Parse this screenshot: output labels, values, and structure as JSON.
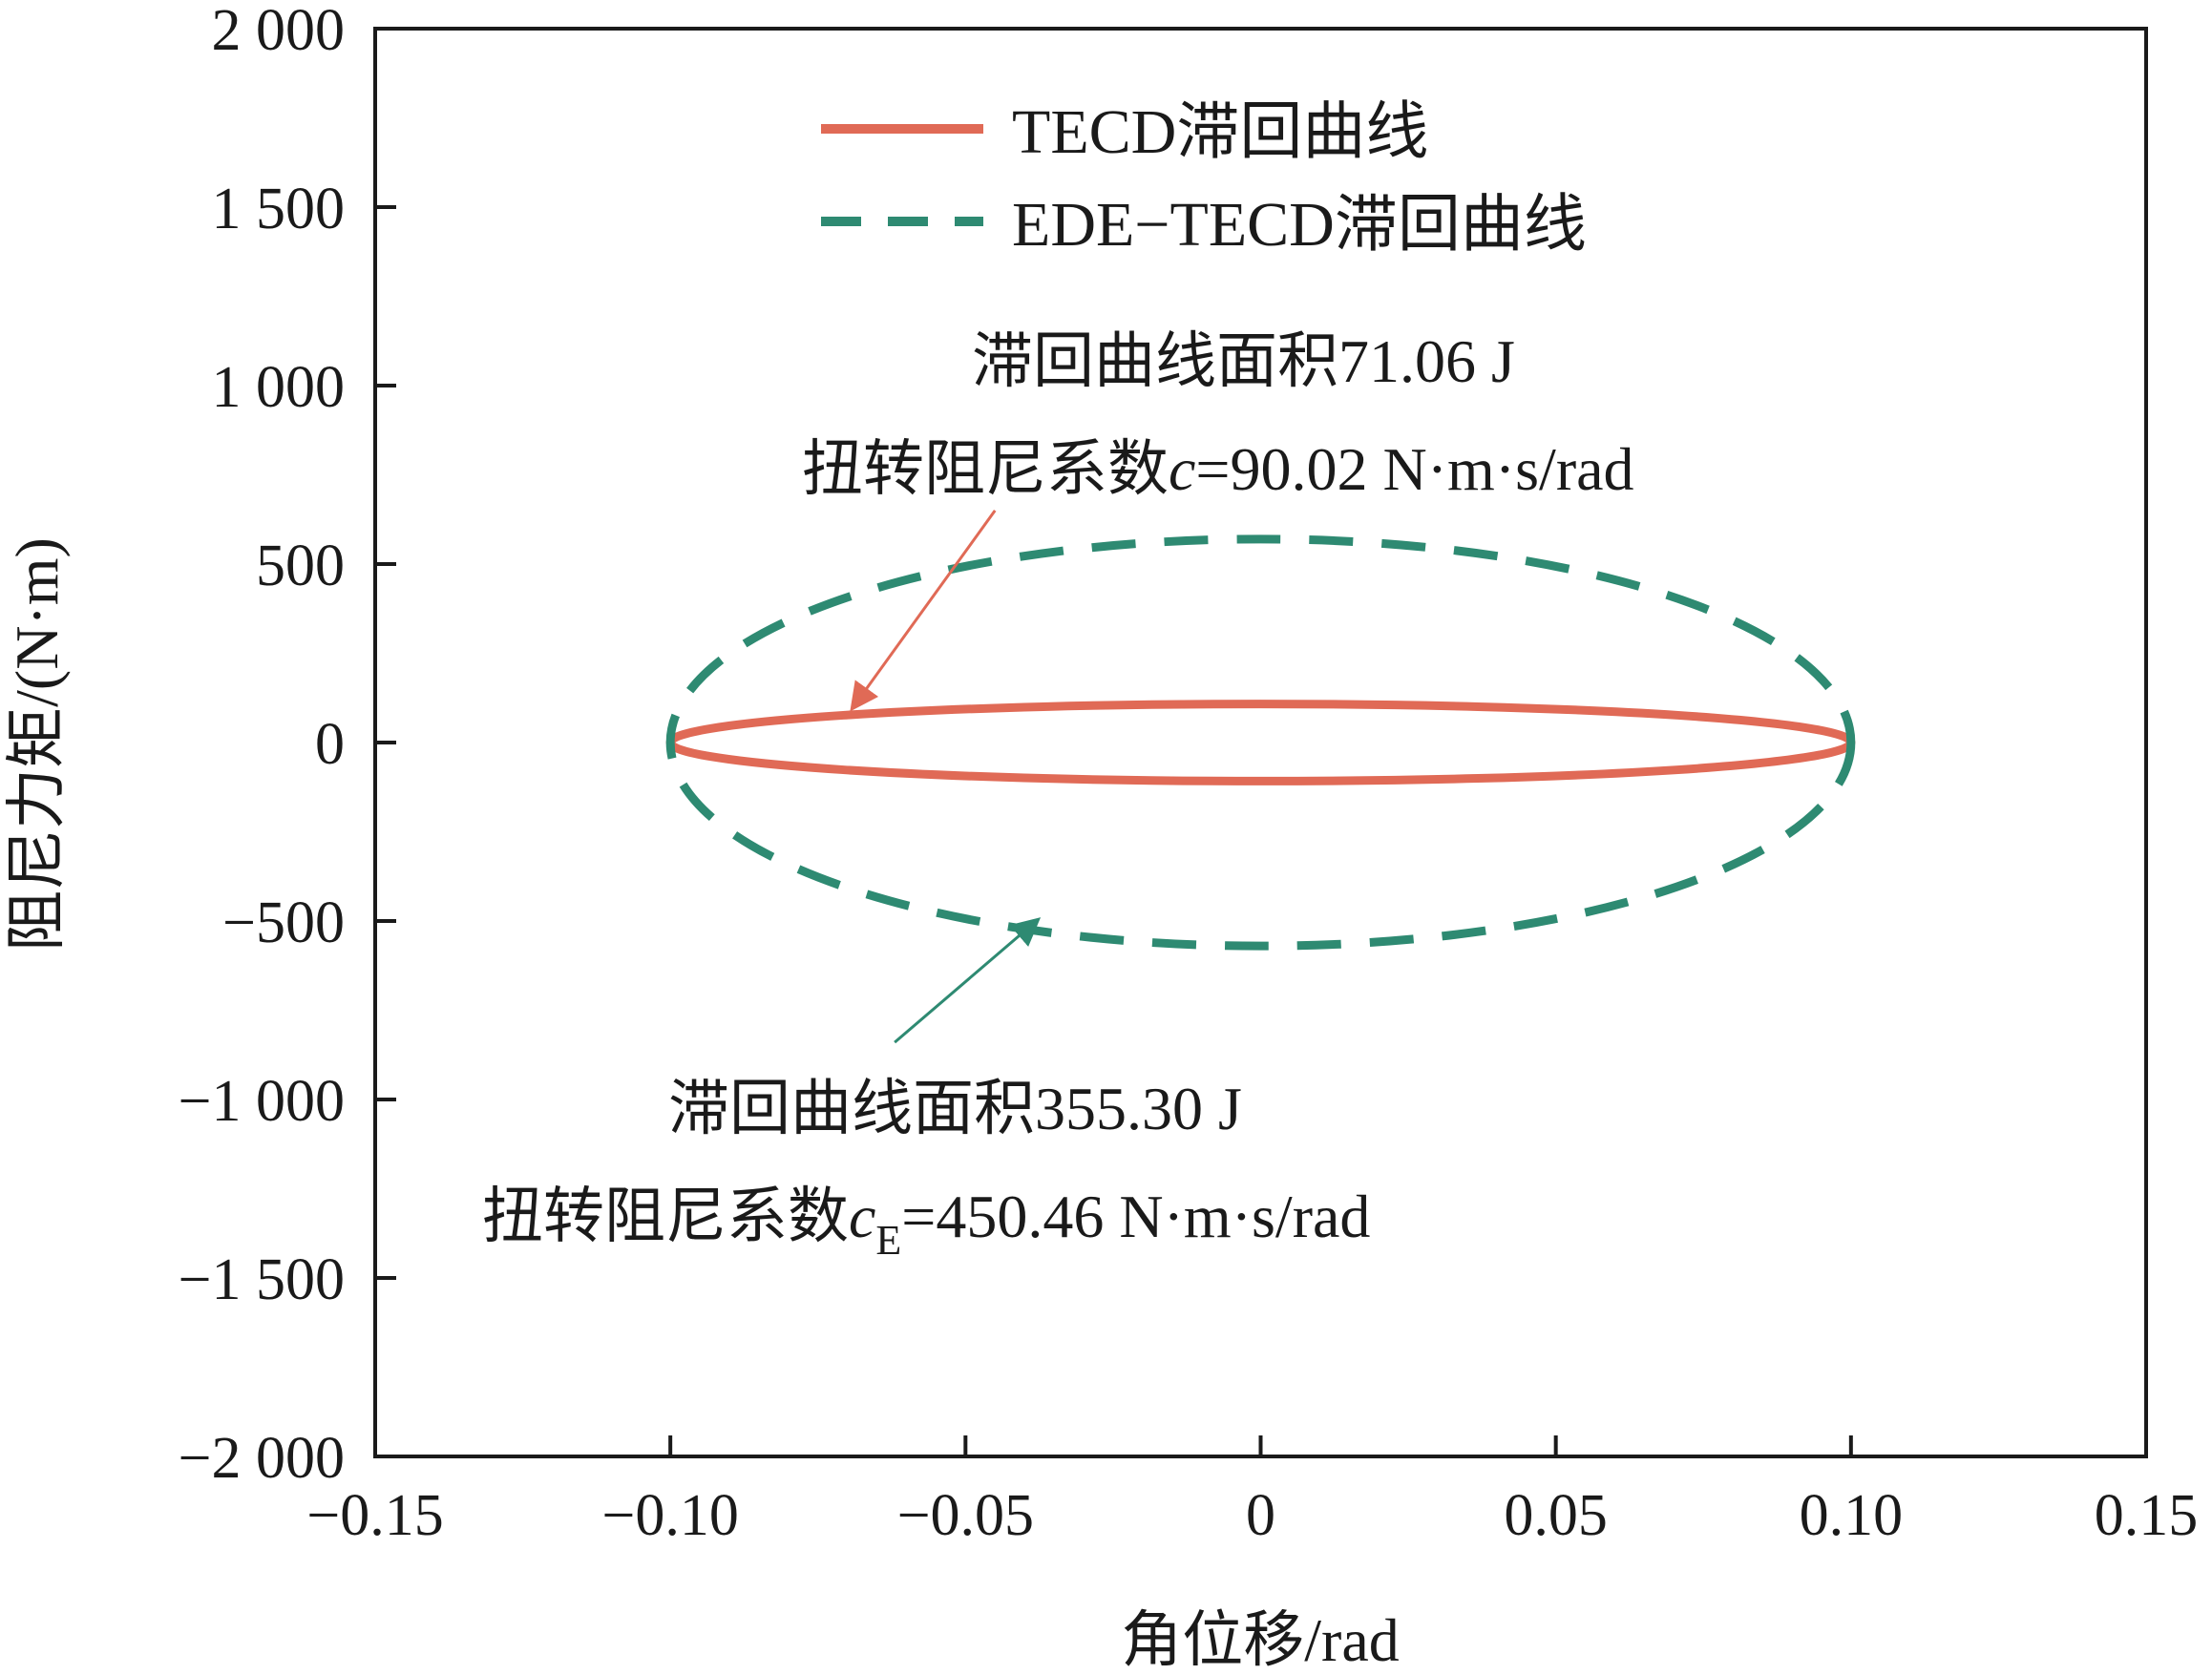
{
  "chart_data": {
    "type": "line",
    "xlabel": "角位移/rad",
    "ylabel": "阻尼力矩/(N·m)",
    "xlim": [
      -0.15,
      0.15
    ],
    "ylim": [
      -2000,
      2000
    ],
    "x_ticks": [
      -0.15,
      -0.1,
      -0.05,
      0,
      0.05,
      0.1,
      0.15
    ],
    "x_tick_labels": [
      "−0.15",
      "−0.10",
      "−0.05",
      "0",
      "0.05",
      "0.10",
      "0.15"
    ],
    "y_ticks": [
      -2000,
      -1500,
      -1000,
      -500,
      0,
      500,
      1000,
      1500,
      2000
    ],
    "y_tick_labels": [
      "−2 000",
      "−1 500",
      "−1 000",
      "−500",
      "0",
      "500",
      "1 000",
      "1 500",
      "2 000"
    ],
    "grid": false,
    "legend_position": "top-center",
    "series": [
      {
        "name": "TECD滞回曲线",
        "style": "solid",
        "color": "#e06a56",
        "shape": "ellipse",
        "x_amplitude": 0.1,
        "y_amplitude": 108,
        "x_center": 0,
        "y_center": 0
      },
      {
        "name": "EDE−TECD滞回曲线",
        "style": "dashed",
        "color": "#2e8a72",
        "shape": "ellipse",
        "x_amplitude": 0.1,
        "y_amplitude": 570,
        "x_center": 0,
        "y_center": 0
      }
    ],
    "annotations": [
      {
        "series": "TECD滞回曲线",
        "line1": "滞回曲线面积71.06 J",
        "line2_prefix": "扭转阻尼系数",
        "symbol": "c",
        "subscript": "",
        "line2_suffix": "=90.02 N·m·s/rad",
        "arrow_from": [
          -0.045,
          650
        ],
        "arrow_to": [
          -0.069,
          100
        ],
        "color": "#e06a56"
      },
      {
        "series": "EDE−TECD滞回曲线",
        "line1": "滞回曲线面积355.30 J",
        "line2_prefix": "扭转阻尼系数",
        "symbol": "c",
        "subscript": "E",
        "line2_suffix": "=450.46 N·m·s/rad",
        "arrow_from": [
          -0.062,
          -840
        ],
        "arrow_to": [
          -0.038,
          -500
        ],
        "color": "#2e8a72"
      }
    ]
  }
}
